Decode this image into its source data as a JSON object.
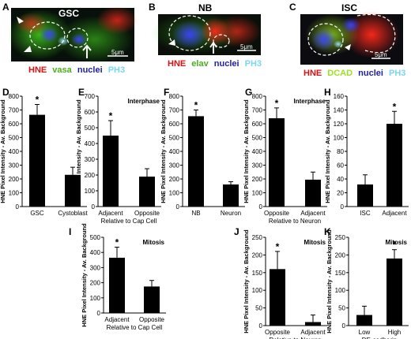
{
  "micrographs": [
    {
      "letter": "A",
      "title": "GSC",
      "scale": "5μm",
      "legend": [
        {
          "text": "HNE",
          "color": "#e01010"
        },
        {
          "text": "vasa",
          "color": "#4caf1e"
        },
        {
          "text": "nuclei",
          "color": "#1f1fa0"
        },
        {
          "text": "PH3",
          "color": "#7ad6f0"
        }
      ]
    },
    {
      "letter": "B",
      "title": "NB",
      "scale": "5μm",
      "legend": [
        {
          "text": "HNE",
          "color": "#e01010"
        },
        {
          "text": "elav",
          "color": "#4caf1e"
        },
        {
          "text": "nuclei",
          "color": "#1f1fa0"
        },
        {
          "text": "PH3",
          "color": "#7ad6f0"
        }
      ]
    },
    {
      "letter": "C",
      "title": "ISC",
      "scale": "5μm",
      "legend": [
        {
          "text": "HNE",
          "color": "#e01010"
        },
        {
          "text": "DCAD",
          "color": "#9be31c"
        },
        {
          "text": "nuclei",
          "color": "#1f1fa0"
        },
        {
          "text": "PH3",
          "color": "#7ad6f0"
        }
      ]
    }
  ],
  "chart_data": [
    {
      "panel": "D",
      "type": "bar",
      "title": "",
      "ylabel": "HNE Pixel Intensity - Av. Background",
      "ylim": [
        0,
        800
      ],
      "yticks": [
        0,
        100,
        200,
        300,
        400,
        500,
        600,
        700,
        800
      ],
      "categories": [
        "GSC",
        "Cystoblast"
      ],
      "values": [
        665,
        230
      ],
      "errors": [
        75,
        55
      ],
      "significant": [
        true,
        false
      ],
      "xlabel": ""
    },
    {
      "panel": "E",
      "type": "bar",
      "title": "Interphase",
      "ylabel": "HNE Pixel Intensity - Av. Background",
      "ylim": [
        0,
        700
      ],
      "yticks": [
        0,
        100,
        200,
        300,
        400,
        500,
        600,
        700
      ],
      "categories": [
        "Adjacent",
        "Opposite"
      ],
      "values": [
        450,
        190
      ],
      "errors": [
        95,
        50
      ],
      "significant": [
        true,
        false
      ],
      "xlabel": "Relative to Cap Cell"
    },
    {
      "panel": "F",
      "type": "bar",
      "title": "",
      "ylabel": "HNE Pixel Intensity - Av. Background",
      "ylim": [
        0,
        800
      ],
      "yticks": [
        0,
        100,
        200,
        300,
        400,
        500,
        600,
        700,
        800
      ],
      "categories": [
        "NB",
        "Neuron"
      ],
      "values": [
        655,
        160
      ],
      "errors": [
        45,
        20
      ],
      "significant": [
        true,
        false
      ],
      "xlabel": ""
    },
    {
      "panel": "G",
      "type": "bar",
      "title": "Interphase",
      "ylabel": "HNE Pixel Intensity - Av. Background",
      "ylim": [
        0,
        800
      ],
      "yticks": [
        0,
        100,
        200,
        300,
        400,
        500,
        600,
        700,
        800
      ],
      "categories": [
        "Opposite",
        "Adjacent"
      ],
      "values": [
        640,
        195
      ],
      "errors": [
        75,
        55
      ],
      "significant": [
        true,
        false
      ],
      "xlabel": "Relative to Neuron"
    },
    {
      "panel": "H",
      "type": "bar",
      "title": "",
      "ylabel": "HNE Pixel Intensity - Av. Background",
      "ylim": [
        0,
        160
      ],
      "yticks": [
        0,
        20,
        40,
        60,
        80,
        100,
        120,
        140,
        160
      ],
      "categories": [
        "ISC",
        "Adjacent"
      ],
      "values": [
        32,
        120
      ],
      "errors": [
        14,
        18
      ],
      "significant": [
        false,
        true
      ],
      "xlabel": ""
    },
    {
      "panel": "I",
      "type": "bar",
      "title": "Mitosis",
      "ylabel": "HNE Pixel Intensity - Av. Background",
      "ylim": [
        0,
        500
      ],
      "yticks": [
        0,
        100,
        200,
        300,
        400,
        500
      ],
      "categories": [
        "Adjacent",
        "Opposite"
      ],
      "values": [
        365,
        175
      ],
      "errors": [
        70,
        40
      ],
      "significant": [
        true,
        false
      ],
      "xlabel": "Relative to Cap Cell"
    },
    {
      "panel": "J",
      "type": "bar",
      "title": "Mitosis",
      "ylabel": "HNE Pixel Intensity - Av. Background",
      "ylim": [
        0,
        250
      ],
      "yticks": [
        0,
        50,
        100,
        150,
        200,
        250
      ],
      "categories": [
        "Opposite",
        "Adjacent"
      ],
      "values": [
        160,
        10
      ],
      "errors": [
        50,
        20
      ],
      "significant": [
        true,
        false
      ],
      "xlabel": "Relative to Neuron"
    },
    {
      "panel": "K",
      "type": "bar",
      "title": "Mitosis",
      "ylabel": "HNE Pixel Intensity - Av. Background",
      "ylim": [
        0,
        250
      ],
      "yticks": [
        0,
        50,
        100,
        150,
        200,
        250
      ],
      "categories": [
        "Low",
        "High"
      ],
      "values": [
        30,
        190
      ],
      "errors": [
        25,
        25
      ],
      "significant": [
        false,
        true
      ],
      "xlabel": "DE-cadherin"
    }
  ]
}
